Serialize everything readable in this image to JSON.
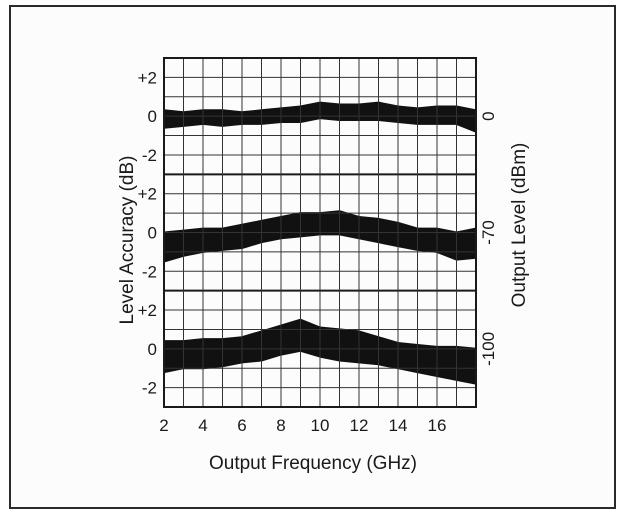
{
  "chart_data": {
    "type": "area",
    "xlabel": "Output Frequency (GHz)",
    "ylabel": "Level Accuracy (dB)",
    "ylabel_right": "Output Level (dBm)",
    "xlim": [
      2,
      18
    ],
    "x_ticks": [
      "2",
      "4",
      "6",
      "8",
      "10",
      "12",
      "14",
      "16"
    ],
    "grid": true,
    "band_color": "#111111",
    "panels": [
      {
        "output_level": "0",
        "ylim": [
          -3,
          3
        ],
        "y_ticks": [
          "+2",
          "0",
          "-2"
        ],
        "x": [
          2,
          3,
          4,
          5,
          6,
          7,
          8,
          9,
          10,
          11,
          12,
          13,
          14,
          15,
          16,
          17,
          18
        ],
        "upper": [
          0.3,
          0.2,
          0.3,
          0.3,
          0.2,
          0.3,
          0.4,
          0.5,
          0.7,
          0.6,
          0.6,
          0.7,
          0.5,
          0.4,
          0.5,
          0.5,
          0.3
        ],
        "lower": [
          -0.6,
          -0.5,
          -0.4,
          -0.5,
          -0.4,
          -0.4,
          -0.3,
          -0.3,
          -0.1,
          -0.2,
          -0.2,
          -0.2,
          -0.3,
          -0.4,
          -0.4,
          -0.4,
          -0.8
        ]
      },
      {
        "output_level": "-70",
        "ylim": [
          -3,
          3
        ],
        "y_ticks": [
          "+2",
          "0",
          "-2"
        ],
        "x": [
          2,
          3,
          4,
          5,
          6,
          7,
          8,
          9,
          10,
          11,
          12,
          13,
          14,
          15,
          16,
          17,
          18
        ],
        "upper": [
          0.0,
          0.1,
          0.2,
          0.2,
          0.4,
          0.6,
          0.8,
          1.0,
          1.0,
          1.1,
          0.8,
          0.7,
          0.5,
          0.2,
          0.2,
          0.0,
          0.2
        ],
        "lower": [
          -1.5,
          -1.2,
          -1.0,
          -0.9,
          -0.8,
          -0.5,
          -0.3,
          -0.2,
          -0.1,
          -0.1,
          -0.3,
          -0.5,
          -0.7,
          -0.9,
          -1.0,
          -1.4,
          -1.3
        ]
      },
      {
        "output_level": "-100",
        "ylim": [
          -3,
          3
        ],
        "y_ticks": [
          "+2",
          "0",
          "-2"
        ],
        "x": [
          2,
          3,
          4,
          5,
          6,
          7,
          8,
          9,
          10,
          11,
          12,
          13,
          14,
          15,
          16,
          17,
          18
        ],
        "upper": [
          0.4,
          0.4,
          0.5,
          0.5,
          0.6,
          0.9,
          1.2,
          1.5,
          1.1,
          1.0,
          0.9,
          0.6,
          0.3,
          0.2,
          0.1,
          0.1,
          0.0
        ],
        "lower": [
          -1.2,
          -1.0,
          -1.0,
          -0.9,
          -0.7,
          -0.6,
          -0.3,
          -0.1,
          -0.4,
          -0.6,
          -0.7,
          -0.8,
          -1.0,
          -1.2,
          -1.4,
          -1.6,
          -1.8
        ]
      }
    ]
  }
}
